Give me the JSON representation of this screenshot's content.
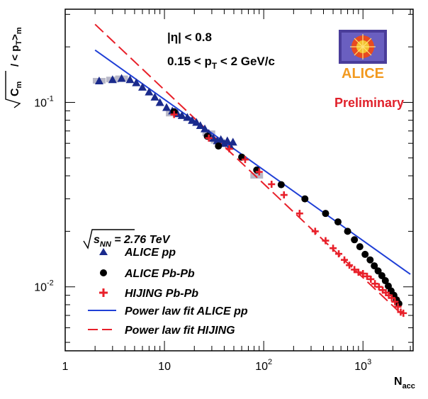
{
  "chart_data": {
    "type": "scatter",
    "title": "",
    "xlabel": "N",
    "xlabel_sub": "acc",
    "ylabel": "Cm",
    "ylabel_full": "√Cm / < pT >m",
    "xscale": "log",
    "yscale": "log",
    "xlim": [
      1,
      3200
    ],
    "ylim": [
      0.0045,
      0.32
    ],
    "x_ticks": [
      {
        "value": 1,
        "label": "1"
      },
      {
        "value": 10,
        "label": "10"
      },
      {
        "value": 100,
        "label": "10",
        "exp": "2"
      },
      {
        "value": 1000,
        "label": "10",
        "exp": "3"
      }
    ],
    "y_ticks": [
      {
        "value": 0.1,
        "label": "10",
        "exp": "-1"
      },
      {
        "value": 0.01,
        "label": "10",
        "exp": "-2"
      }
    ],
    "annotations": {
      "eta_cut": "|η| < 0.8",
      "pt_range": "0.15 < pT < 2 GeV/c",
      "preliminary": "Preliminary",
      "logo": "ALICE"
    },
    "energy_label": "√sNN = 2.76 TeV",
    "legend_position": "bottom-left",
    "colors": {
      "alice_pp": "#1a2a8c",
      "alice_pbpb": "#000000",
      "hijing": "#e8202a",
      "fit_pp": "#1f3fd6",
      "fit_hijing": "#e8202a",
      "syst_band": "#b8b8c8"
    },
    "series": [
      {
        "name": "ALICE pp",
        "marker": "triangle",
        "x": [
          2.2,
          3.0,
          3.7,
          4.5,
          5.2,
          6.0,
          7.0,
          8.0,
          9.0,
          10.5,
          12.0,
          13.5,
          15.0,
          17.0,
          19.0,
          21.0,
          23.0,
          25.5,
          28.0,
          31.0,
          34.0,
          37.0,
          40.0,
          43.0,
          46.0,
          49.0
        ],
        "values": [
          0.131,
          0.133,
          0.135,
          0.133,
          0.128,
          0.121,
          0.114,
          0.107,
          0.1,
          0.094,
          0.09,
          0.087,
          0.085,
          0.083,
          0.08,
          0.078,
          0.075,
          0.072,
          0.068,
          0.064,
          0.062,
          0.063,
          0.06,
          0.062,
          0.058,
          0.061
        ]
      },
      {
        "name": "ALICE Pb-Pb",
        "marker": "circle",
        "x": [
          12.5,
          27,
          35,
          60,
          85,
          150,
          260,
          420,
          560,
          700,
          820,
          930,
          1050,
          1180,
          1300,
          1420,
          1550,
          1680,
          1800,
          1920,
          2050,
          2180,
          2300
        ],
        "values": [
          0.089,
          0.0655,
          0.058,
          0.0505,
          0.043,
          0.0358,
          0.03,
          0.025,
          0.0225,
          0.02,
          0.018,
          0.0165,
          0.015,
          0.014,
          0.013,
          0.0122,
          0.0115,
          0.0108,
          0.0101,
          0.0095,
          0.009,
          0.0085,
          0.0081
        ]
      },
      {
        "name": "HIJING Pb-Pb",
        "marker": "plus",
        "x": [
          12.5,
          28,
          45,
          65,
          90,
          120,
          160,
          230,
          330,
          420,
          500,
          570,
          650,
          730,
          820,
          900,
          1000,
          1100,
          1200,
          1320,
          1450,
          1580,
          1700,
          1820,
          1950,
          2100,
          2250,
          2400,
          2550
        ],
        "values": [
          0.086,
          0.064,
          0.056,
          0.049,
          0.042,
          0.036,
          0.0315,
          0.025,
          0.02,
          0.0178,
          0.0162,
          0.0151,
          0.014,
          0.0131,
          0.0124,
          0.012,
          0.0118,
          0.0114,
          0.011,
          0.0104,
          0.01,
          0.0096,
          0.0093,
          0.009,
          0.0087,
          0.0083,
          0.0078,
          0.0073,
          0.0072
        ]
      }
    ],
    "fits": [
      {
        "name": "Power law fit ALICE pp",
        "style": "solid",
        "x": [
          2.0,
          3000
        ],
        "values": [
          0.192,
          0.0117
        ]
      },
      {
        "name": "Power law fit HIJING",
        "style": "dashed",
        "x": [
          2.0,
          2600
        ],
        "values": [
          0.265,
          0.0069
        ]
      }
    ],
    "syst_bands": {
      "x": [
        2.2,
        3.0,
        3.7,
        12.0,
        28.0,
        34.0,
        85.0
      ],
      "values": [
        0.131,
        0.133,
        0.135,
        0.087,
        0.068,
        0.062,
        0.04
      ]
    }
  }
}
